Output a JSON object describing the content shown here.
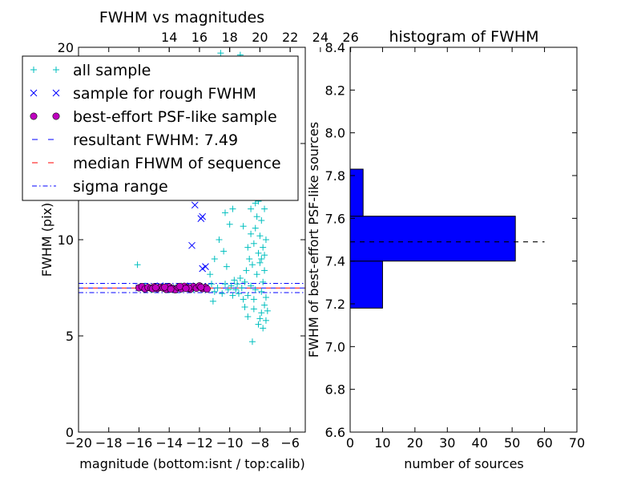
{
  "chart_data": [
    {
      "type": "scatter",
      "title": "FWHM vs magnitudes",
      "xlabel": "magnitude (bottom:isnt / top:calib)",
      "ylabel": "FWHM (pix)",
      "xlim": [
        -20,
        -5
      ],
      "ylim": [
        0,
        20
      ],
      "x_ticks": [
        "−20",
        "−18",
        "−16",
        "−14",
        "−12",
        "−10",
        "−8",
        "−6"
      ],
      "y_ticks": [
        "0",
        "5",
        "10",
        "15",
        "20"
      ],
      "top_axis": {
        "label_offset": 28,
        "ticks": [
          "14",
          "16",
          "18",
          "20",
          "22",
          "24",
          "26"
        ]
      },
      "grid": false,
      "legend": {
        "placement": "upper-left",
        "entries": [
          {
            "label": "all sample",
            "marker": "+",
            "color": "#00bfbf"
          },
          {
            "label": "sample for rough FWHM",
            "marker": "x",
            "color": "#0000ff"
          },
          {
            "label": "best-effort PSF-like sample",
            "marker": "o",
            "color": "#bf00bf"
          },
          {
            "label": "resultant FWHM: 7.49",
            "style": "dashed",
            "color": "#0000ff"
          },
          {
            "label": "median FHWM of sequence",
            "style": "dashed",
            "color": "#ff0000"
          },
          {
            "label": "sigma range",
            "style": "dashdot",
            "color": "#0000ff"
          }
        ]
      },
      "lines": {
        "resultant_fwhm": 7.49,
        "median_fwhm": 7.49,
        "sigma_range": [
          7.25,
          7.73
        ]
      },
      "series": [
        {
          "name": "all sample",
          "marker": "+",
          "color": "#00bfbf",
          "points": [
            [
              -16.1,
              8.7
            ],
            [
              -15.9,
              7.5
            ],
            [
              -15.6,
              7.6
            ],
            [
              -15.2,
              7.4
            ],
            [
              -14.8,
              7.5
            ],
            [
              -14.4,
              7.6
            ],
            [
              -14.0,
              7.4
            ],
            [
              -13.6,
              7.5
            ],
            [
              -13.2,
              7.6
            ],
            [
              -12.8,
              7.5
            ],
            [
              -12.4,
              7.4
            ],
            [
              -12.0,
              7.6
            ],
            [
              -11.6,
              7.5
            ],
            [
              -11.2,
              7.7
            ],
            [
              -11.0,
              7.3
            ],
            [
              -10.8,
              7.5
            ],
            [
              -10.5,
              7.2
            ],
            [
              -10.3,
              7.7
            ],
            [
              -10.1,
              7.4
            ],
            [
              -9.9,
              7.6
            ],
            [
              -9.8,
              7.1
            ],
            [
              -9.7,
              7.9
            ],
            [
              -9.6,
              7.4
            ],
            [
              -9.5,
              7.7
            ],
            [
              -9.4,
              7.2
            ],
            [
              -9.3,
              8.0
            ],
            [
              -9.2,
              7.5
            ],
            [
              -9.1,
              6.9
            ],
            [
              -9.0,
              7.8
            ],
            [
              -8.9,
              8.4
            ],
            [
              -8.8,
              7.1
            ],
            [
              -8.7,
              9.0
            ],
            [
              -8.6,
              7.6
            ],
            [
              -8.5,
              8.7
            ],
            [
              -8.4,
              9.8
            ],
            [
              -8.3,
              10.6
            ],
            [
              -8.2,
              11.2
            ],
            [
              -8.1,
              12.0
            ],
            [
              -8.0,
              13.1
            ],
            [
              -7.9,
              14.2
            ],
            [
              -7.8,
              15.0
            ],
            [
              -7.7,
              14.0
            ],
            [
              -7.6,
              12.6
            ],
            [
              -8.3,
              16.1
            ],
            [
              -8.1,
              17.0
            ],
            [
              -8.0,
              15.8
            ],
            [
              -8.2,
              13.6
            ],
            [
              -7.9,
              11.0
            ],
            [
              -8.0,
              10.2
            ],
            [
              -7.8,
              9.6
            ],
            [
              -7.9,
              9.0
            ],
            [
              -7.7,
              8.4
            ],
            [
              -7.8,
              7.8
            ],
            [
              -7.6,
              7.0
            ],
            [
              -7.7,
              6.6
            ],
            [
              -7.9,
              6.2
            ],
            [
              -8.0,
              5.9
            ],
            [
              -8.1,
              5.6
            ],
            [
              -7.8,
              5.4
            ],
            [
              -7.6,
              5.8
            ],
            [
              -7.5,
              6.3
            ],
            [
              -8.5,
              4.7
            ],
            [
              -9.0,
              6.5
            ],
            [
              -8.8,
              6.0
            ],
            [
              -8.4,
              6.4
            ],
            [
              -8.6,
              11.6
            ],
            [
              -8.4,
              12.4
            ],
            [
              -8.3,
              13.0
            ],
            [
              -8.7,
              14.4
            ],
            [
              -8.6,
              15.6
            ],
            [
              -8.5,
              17.6
            ],
            [
              -8.9,
              18.4
            ],
            [
              -9.3,
              19.6
            ],
            [
              -10.6,
              19.7
            ],
            [
              -9.6,
              18.9
            ],
            [
              -9.4,
              17.2
            ],
            [
              -9.2,
              15.0
            ],
            [
              -9.0,
              13.4
            ],
            [
              -9.5,
              12.2
            ],
            [
              -9.8,
              11.6
            ],
            [
              -10.0,
              10.8
            ],
            [
              -10.4,
              9.4
            ],
            [
              -10.2,
              8.6
            ],
            [
              -8.2,
              19.1
            ],
            [
              -8.0,
              18.3
            ],
            [
              -7.7,
              17.3
            ],
            [
              -7.6,
              16.4
            ],
            [
              -8.1,
              9.3
            ],
            [
              -8.0,
              8.8
            ],
            [
              -8.2,
              8.2
            ],
            [
              -8.3,
              7.4
            ],
            [
              -8.4,
              6.9
            ],
            [
              -7.9,
              7.3
            ],
            [
              -7.7,
              9.2
            ],
            [
              -7.6,
              10.0
            ],
            [
              -7.7,
              11.6
            ],
            [
              -8.1,
              14.6
            ],
            [
              -8.3,
              11.9
            ],
            [
              -8.6,
              10.3
            ],
            [
              -8.8,
              9.6
            ],
            [
              -9.1,
              10.7
            ],
            [
              -9.3,
              12.8
            ],
            [
              -9.5,
              14.0
            ],
            [
              -9.7,
              15.2
            ],
            [
              -9.9,
              13.8
            ],
            [
              -10.1,
              12.6
            ],
            [
              -10.3,
              11.4
            ],
            [
              -10.7,
              10.0
            ],
            [
              -11.0,
              9.0
            ],
            [
              -11.3,
              8.2
            ],
            [
              -10.9,
              12.8
            ],
            [
              -10.5,
              14.8
            ],
            [
              -11.1,
              6.8
            ]
          ]
        },
        {
          "name": "sample for rough FWHM",
          "marker": "x",
          "color": "#0000ff",
          "points": [
            [
              -12.5,
              14.5
            ],
            [
              -12.0,
              12.6
            ],
            [
              -12.3,
              11.8
            ],
            [
              -11.8,
              11.2
            ],
            [
              -11.9,
              11.1
            ],
            [
              -12.5,
              9.7
            ],
            [
              -11.6,
              8.6
            ],
            [
              -11.8,
              8.5
            ],
            [
              -16.0,
              7.5
            ],
            [
              -15.3,
              7.5
            ],
            [
              -14.6,
              7.6
            ],
            [
              -13.9,
              7.5
            ],
            [
              -13.2,
              7.5
            ],
            [
              -12.6,
              7.6
            ],
            [
              -12.1,
              7.5
            ],
            [
              -11.6,
              7.5
            ]
          ]
        },
        {
          "name": "best-effort PSF-like sample",
          "marker": "o",
          "color": "#bf00bf",
          "points": [
            [
              -16.0,
              7.5
            ],
            [
              -15.8,
              7.56
            ],
            [
              -15.6,
              7.44
            ],
            [
              -15.4,
              7.52
            ],
            [
              -15.2,
              7.48
            ],
            [
              -15.0,
              7.55
            ],
            [
              -14.8,
              7.46
            ],
            [
              -14.6,
              7.53
            ],
            [
              -14.4,
              7.49
            ],
            [
              -14.2,
              7.42
            ],
            [
              -14.0,
              7.55
            ],
            [
              -13.8,
              7.47
            ],
            [
              -13.6,
              7.4
            ],
            [
              -13.4,
              7.52
            ],
            [
              -13.2,
              7.45
            ],
            [
              -13.0,
              7.58
            ],
            [
              -12.8,
              7.5
            ],
            [
              -12.6,
              7.43
            ],
            [
              -12.4,
              7.56
            ],
            [
              -12.2,
              7.48
            ],
            [
              -12.0,
              7.6
            ],
            [
              -11.8,
              7.46
            ],
            [
              -11.6,
              7.52
            ],
            [
              -11.5,
              7.44
            ],
            [
              -11.9,
              7.53
            ],
            [
              -12.7,
              7.49
            ],
            [
              -13.3,
              7.57
            ],
            [
              -14.3,
              7.53
            ],
            [
              -15.1,
              7.45
            ],
            [
              -14.9,
              7.51
            ],
            [
              -13.9,
              7.43
            ],
            [
              -12.9,
              7.47
            ]
          ]
        }
      ]
    },
    {
      "type": "bar",
      "orientation": "horizontal",
      "title": "histogram of FWHM",
      "xlabel": "number of sources",
      "ylabel": "FWHM of best-effort PSF-like sources",
      "xlim": [
        0,
        70
      ],
      "ylim": [
        6.6,
        8.4
      ],
      "x_ticks": [
        "0",
        "10",
        "20",
        "30",
        "40",
        "50",
        "60",
        "70"
      ],
      "y_ticks": [
        "6.6",
        "6.8",
        "7.0",
        "7.2",
        "7.4",
        "7.6",
        "7.8",
        "8.0",
        "8.2",
        "8.4"
      ],
      "color": "#0000ff",
      "grid": false,
      "bins": [
        {
          "from": 7.18,
          "to": 7.4,
          "count": 10
        },
        {
          "from": 7.4,
          "to": 7.61,
          "count": 51
        },
        {
          "from": 7.61,
          "to": 7.83,
          "count": 4
        }
      ],
      "reference_line": {
        "y": 7.49,
        "x_range": [
          0,
          60
        ],
        "style": "dashed",
        "color": "#000000"
      }
    }
  ]
}
